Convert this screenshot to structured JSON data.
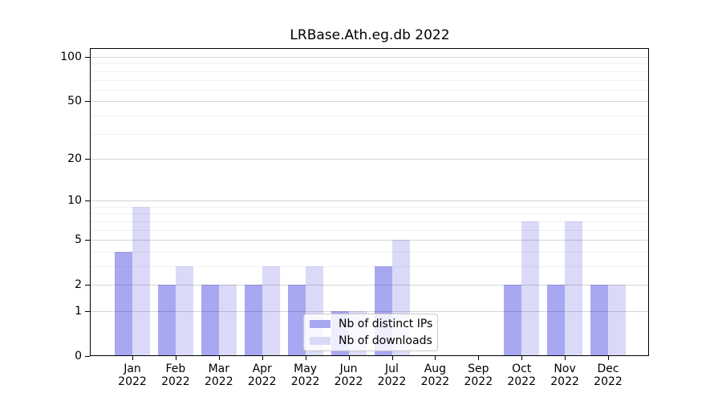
{
  "chart_data": {
    "type": "bar",
    "title": "LRBase.Ath.eg.db 2022",
    "categories": [
      "Jan",
      "Feb",
      "Mar",
      "Apr",
      "May",
      "Jun",
      "Jul",
      "Aug",
      "Sep",
      "Oct",
      "Nov",
      "Dec"
    ],
    "year_label": "2022",
    "series": [
      {
        "name": "Nb of distinct IPs",
        "color": "#a8a8f2",
        "values": [
          4,
          2,
          2,
          2,
          2,
          1,
          3,
          0,
          0,
          2,
          2,
          2
        ]
      },
      {
        "name": "Nb of downloads",
        "color": "#dadaf8",
        "values": [
          9,
          3,
          2,
          3,
          3,
          1,
          5,
          0,
          0,
          7,
          7,
          2
        ]
      }
    ],
    "y_axis": {
      "scale": "log1p",
      "major_ticks": [
        0,
        1,
        2,
        5,
        10,
        20,
        50,
        100
      ],
      "minor_ticks": [
        3,
        4,
        6,
        7,
        8,
        9,
        30,
        40,
        60,
        70,
        80,
        90
      ],
      "ylim": [
        0,
        114
      ]
    },
    "xlabel": "",
    "ylabel": "",
    "grid": true,
    "legend_position": "lower center"
  }
}
